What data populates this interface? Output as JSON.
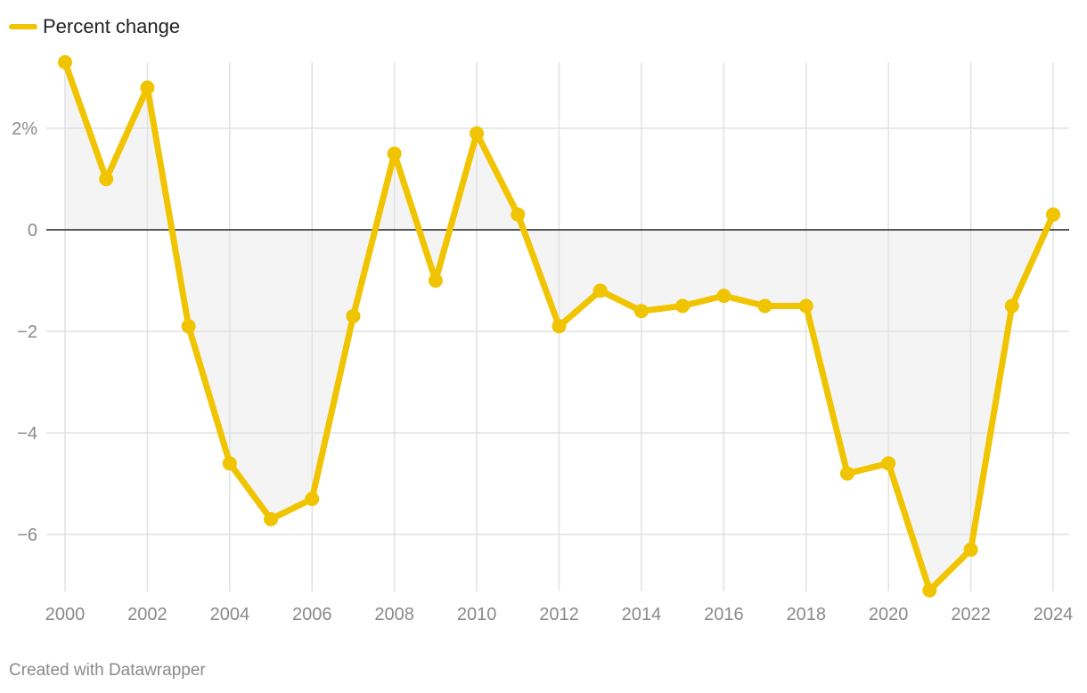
{
  "legend": {
    "label": "Percent change"
  },
  "credit": "Created with Datawrapper",
  "chart_data": {
    "type": "line",
    "x": [
      2000,
      2001,
      2002,
      2003,
      2004,
      2005,
      2006,
      2007,
      2008,
      2009,
      2010,
      2011,
      2012,
      2013,
      2014,
      2015,
      2016,
      2017,
      2018,
      2019,
      2020,
      2021,
      2022,
      2023,
      2024
    ],
    "series": [
      {
        "name": "Percent change",
        "color": "#f0c400",
        "values": [
          3.3,
          1.0,
          2.8,
          -1.9,
          -4.6,
          -5.7,
          -5.3,
          -1.7,
          1.5,
          -1.0,
          1.9,
          0.3,
          -1.9,
          -1.2,
          -1.6,
          -1.5,
          -1.3,
          -1.5,
          -1.5,
          -4.8,
          -4.6,
          -7.1,
          -6.3,
          -1.5,
          0.3
        ]
      }
    ],
    "xlim": [
      2000,
      2024
    ],
    "ylim": [
      -7.1,
      3.3
    ],
    "x_ticks": [
      "2000",
      "2002",
      "2004",
      "2006",
      "2008",
      "2010",
      "2012",
      "2014",
      "2016",
      "2018",
      "2020",
      "2022",
      "2024"
    ],
    "y_ticks": [
      {
        "value": 2,
        "label": "2%"
      },
      {
        "value": 0,
        "label": "0"
      },
      {
        "value": -2,
        "label": "−2"
      },
      {
        "value": -4,
        "label": "−4"
      },
      {
        "value": -6,
        "label": "−6"
      }
    ],
    "title": "",
    "xlabel": "",
    "ylabel": "",
    "grid": true,
    "area_fill": "#f4f4f4",
    "legend_position": "top-left"
  }
}
